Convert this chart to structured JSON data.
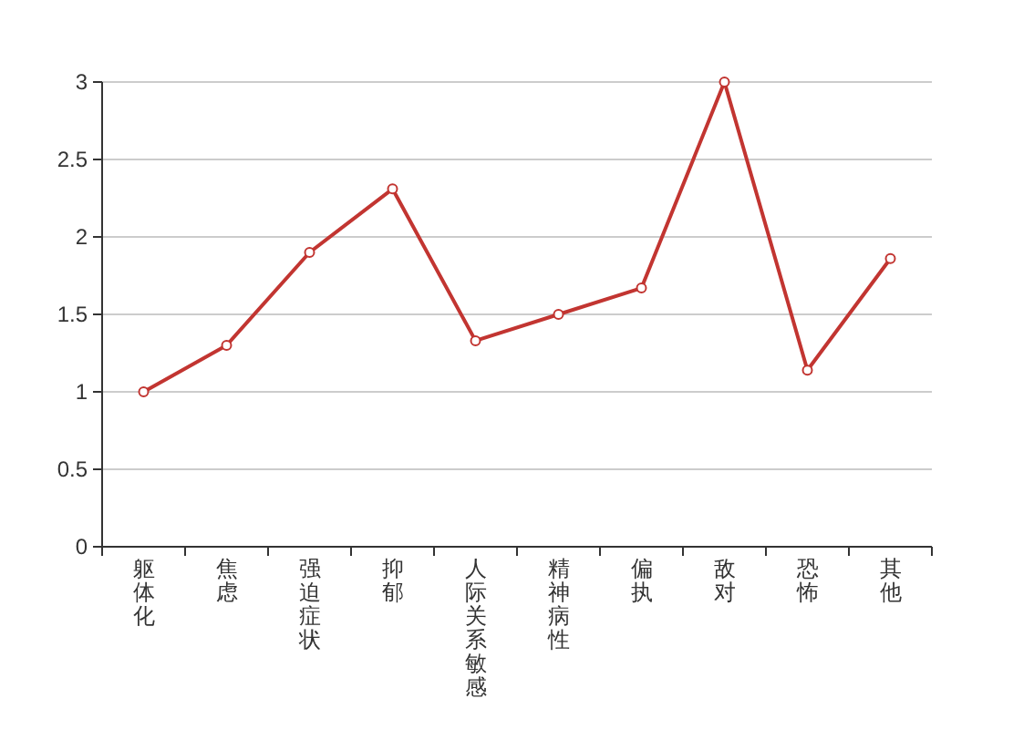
{
  "chart_data": {
    "type": "line",
    "categories": [
      "躯体化",
      "焦虑",
      "强迫症状",
      "抑郁",
      "人际关系敏感",
      "精神病性",
      "偏执",
      "敌对",
      "恐怖",
      "其他"
    ],
    "values": [
      1.0,
      1.3,
      1.9,
      2.31,
      1.33,
      1.5,
      1.67,
      3.0,
      1.14,
      1.86
    ],
    "color": "#c23531",
    "marker": "circle",
    "grid": "y",
    "ylim": [
      0,
      3
    ],
    "yticks": [
      0,
      0.5,
      1,
      1.5,
      2,
      2.5,
      3
    ]
  }
}
